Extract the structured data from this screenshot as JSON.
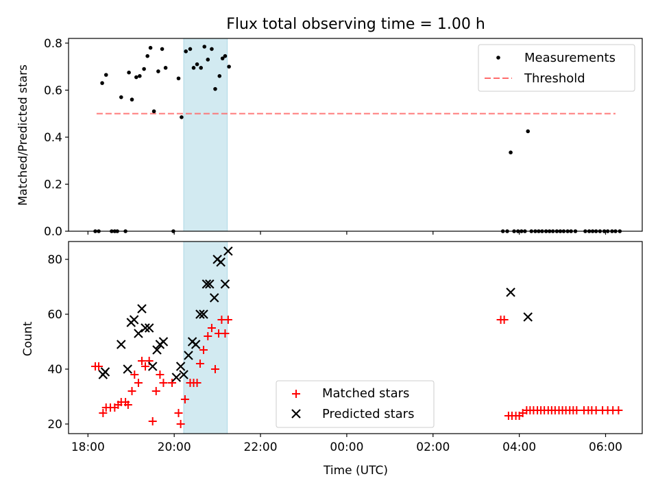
{
  "chart_data": [
    {
      "type": "scatter",
      "title": "Flux total observing time = 1.00 h",
      "ylabel": "Matched/Predicted stars",
      "ylim": [
        0,
        0.82
      ],
      "yticks": [
        "0.0",
        "0.2",
        "0.4",
        "0.6",
        "0.8"
      ],
      "yticks_values": [
        0,
        0.2,
        0.4,
        0.6,
        0.8
      ],
      "xlim": [
        17.55,
        30.85
      ],
      "highlight_band": {
        "x": [
          20.22,
          21.23
        ],
        "color": "#add8e6"
      },
      "threshold": {
        "name": "Threshold",
        "y": 0.5,
        "x": [
          18.2,
          30.23
        ],
        "color": "#ff6b6b"
      },
      "legend_placement": "top-right",
      "series": [
        {
          "name": "Measurements",
          "color": "#000000",
          "points": [
            [
              18.17,
              0.0
            ],
            [
              18.25,
              0.0
            ],
            [
              18.33,
              0.63
            ],
            [
              18.42,
              0.665
            ],
            [
              18.55,
              0.0
            ],
            [
              18.62,
              0.0
            ],
            [
              18.68,
              0.0
            ],
            [
              18.77,
              0.57
            ],
            [
              18.87,
              0.0
            ],
            [
              18.95,
              0.675
            ],
            [
              19.02,
              0.56
            ],
            [
              19.12,
              0.655
            ],
            [
              19.2,
              0.66
            ],
            [
              19.3,
              0.69
            ],
            [
              19.38,
              0.745
            ],
            [
              19.45,
              0.78
            ],
            [
              19.53,
              0.51
            ],
            [
              19.63,
              0.68
            ],
            [
              19.72,
              0.775
            ],
            [
              19.8,
              0.695
            ],
            [
              19.98,
              0.0
            ],
            [
              20.1,
              0.65
            ],
            [
              20.17,
              0.485
            ],
            [
              20.27,
              0.765
            ],
            [
              20.37,
              0.775
            ],
            [
              20.45,
              0.695
            ],
            [
              20.53,
              0.71
            ],
            [
              20.62,
              0.695
            ],
            [
              20.7,
              0.785
            ],
            [
              20.78,
              0.73
            ],
            [
              20.87,
              0.775
            ],
            [
              20.95,
              0.605
            ],
            [
              21.05,
              0.66
            ],
            [
              21.12,
              0.735
            ],
            [
              21.18,
              0.745
            ],
            [
              21.27,
              0.7
            ],
            [
              27.62,
              0.0
            ],
            [
              27.72,
              0.0
            ],
            [
              27.8,
              0.335
            ],
            [
              27.88,
              0.0
            ],
            [
              27.97,
              0.0
            ],
            [
              28.05,
              0.0
            ],
            [
              28.13,
              0.0
            ],
            [
              28.2,
              0.425
            ],
            [
              28.28,
              0.0
            ],
            [
              28.37,
              0.0
            ],
            [
              28.45,
              0.0
            ],
            [
              28.53,
              0.0
            ],
            [
              28.62,
              0.0
            ],
            [
              28.7,
              0.0
            ],
            [
              28.78,
              0.0
            ],
            [
              28.87,
              0.0
            ],
            [
              28.95,
              0.0
            ],
            [
              29.03,
              0.0
            ],
            [
              29.12,
              0.0
            ],
            [
              29.2,
              0.0
            ],
            [
              29.3,
              0.0
            ],
            [
              29.53,
              0.0
            ],
            [
              29.62,
              0.0
            ],
            [
              29.7,
              0.0
            ],
            [
              29.78,
              0.0
            ],
            [
              29.87,
              0.0
            ],
            [
              29.97,
              0.0
            ],
            [
              30.05,
              0.0
            ],
            [
              30.15,
              0.0
            ],
            [
              30.23,
              0.0
            ],
            [
              30.33,
              0.0
            ]
          ]
        }
      ]
    },
    {
      "type": "scatter",
      "xlabel": "Time (UTC)",
      "ylabel": "Count",
      "ylim": [
        16.5,
        86.5
      ],
      "yticks": [
        "20",
        "40",
        "60",
        "80"
      ],
      "yticks_values": [
        20,
        40,
        60,
        80
      ],
      "xlim": [
        17.55,
        30.85
      ],
      "xticks": [
        "18:00",
        "20:00",
        "22:00",
        "00:00",
        "02:00",
        "04:00",
        "06:00"
      ],
      "xticks_values": [
        18,
        20,
        22,
        24,
        26,
        28,
        30
      ],
      "highlight_band": {
        "x": [
          20.22,
          21.23
        ],
        "color": "#add8e6"
      },
      "legend_placement": "lower center",
      "series": [
        {
          "name": "Matched stars",
          "marker": "plus",
          "color": "#ff0000",
          "points": [
            [
              18.17,
              41
            ],
            [
              18.25,
              41
            ],
            [
              18.35,
              24
            ],
            [
              18.42,
              26
            ],
            [
              18.52,
              26
            ],
            [
              18.62,
              26
            ],
            [
              18.7,
              27
            ],
            [
              18.77,
              28
            ],
            [
              18.87,
              28
            ],
            [
              18.93,
              27
            ],
            [
              19.02,
              32
            ],
            [
              19.08,
              38
            ],
            [
              19.17,
              35
            ],
            [
              19.25,
              43
            ],
            [
              19.33,
              41
            ],
            [
              19.42,
              43
            ],
            [
              19.5,
              21
            ],
            [
              19.58,
              32
            ],
            [
              19.67,
              38
            ],
            [
              19.75,
              35
            ],
            [
              19.95,
              35
            ],
            [
              20.1,
              24
            ],
            [
              20.15,
              20
            ],
            [
              20.25,
              29
            ],
            [
              20.37,
              35
            ],
            [
              20.45,
              35
            ],
            [
              20.53,
              35
            ],
            [
              20.6,
              42
            ],
            [
              20.68,
              47
            ],
            [
              20.78,
              52
            ],
            [
              20.87,
              55
            ],
            [
              20.95,
              40
            ],
            [
              21.03,
              53
            ],
            [
              21.1,
              58
            ],
            [
              21.18,
              53
            ],
            [
              21.25,
              58
            ],
            [
              27.57,
              58
            ],
            [
              27.65,
              58
            ],
            [
              27.75,
              23
            ],
            [
              27.83,
              23
            ],
            [
              27.92,
              23
            ],
            [
              28.0,
              23
            ],
            [
              28.08,
              24
            ],
            [
              28.17,
              25
            ],
            [
              28.25,
              25
            ],
            [
              28.33,
              25
            ],
            [
              28.42,
              25
            ],
            [
              28.5,
              25
            ],
            [
              28.58,
              25
            ],
            [
              28.67,
              25
            ],
            [
              28.75,
              25
            ],
            [
              28.83,
              25
            ],
            [
              28.92,
              25
            ],
            [
              29.0,
              25
            ],
            [
              29.08,
              25
            ],
            [
              29.17,
              25
            ],
            [
              29.25,
              25
            ],
            [
              29.33,
              25
            ],
            [
              29.5,
              25
            ],
            [
              29.6,
              25
            ],
            [
              29.68,
              25
            ],
            [
              29.78,
              25
            ],
            [
              29.93,
              25
            ],
            [
              30.05,
              25
            ],
            [
              30.17,
              25
            ],
            [
              30.3,
              25
            ]
          ]
        },
        {
          "name": "Predicted stars",
          "marker": "x",
          "color": "#000000",
          "points": [
            [
              18.35,
              38
            ],
            [
              18.4,
              39
            ],
            [
              18.77,
              49
            ],
            [
              18.92,
              40
            ],
            [
              19.0,
              57
            ],
            [
              19.07,
              58
            ],
            [
              19.17,
              53
            ],
            [
              19.25,
              62
            ],
            [
              19.33,
              55
            ],
            [
              19.42,
              55
            ],
            [
              19.5,
              41
            ],
            [
              19.6,
              47
            ],
            [
              19.67,
              49
            ],
            [
              19.75,
              50
            ],
            [
              20.05,
              37
            ],
            [
              20.15,
              41
            ],
            [
              20.22,
              38
            ],
            [
              20.33,
              45
            ],
            [
              20.42,
              50
            ],
            [
              20.5,
              49
            ],
            [
              20.6,
              60
            ],
            [
              20.68,
              60
            ],
            [
              20.75,
              71
            ],
            [
              20.82,
              71
            ],
            [
              20.93,
              66
            ],
            [
              21.0,
              80
            ],
            [
              21.08,
              79
            ],
            [
              21.18,
              71
            ],
            [
              21.25,
              83
            ],
            [
              27.8,
              68
            ],
            [
              28.2,
              59
            ]
          ]
        }
      ]
    }
  ]
}
